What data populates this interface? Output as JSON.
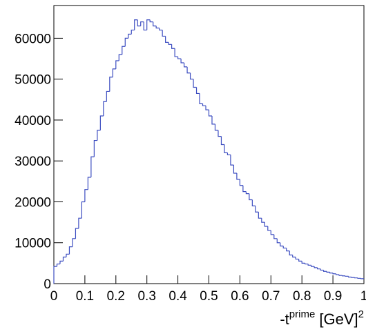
{
  "chart_data": {
    "type": "histogram",
    "x_label": [
      "-t",
      "prime",
      " [GeV]",
      "2"
    ],
    "color": "#3b4cc0",
    "bins": [
      0,
      0.01,
      0.02,
      0.03,
      0.04,
      0.05,
      0.06,
      0.07,
      0.08,
      0.09,
      0.1,
      0.11,
      0.12,
      0.13,
      0.14,
      0.15,
      0.16,
      0.17,
      0.18,
      0.19,
      0.2,
      0.21,
      0.22,
      0.23,
      0.24,
      0.25,
      0.26,
      0.27,
      0.28,
      0.29,
      0.3,
      0.31,
      0.32,
      0.33,
      0.34,
      0.35,
      0.36,
      0.37,
      0.38,
      0.39,
      0.4,
      0.41,
      0.42,
      0.43,
      0.44,
      0.45,
      0.46,
      0.47,
      0.48,
      0.49,
      0.5,
      0.51,
      0.52,
      0.53,
      0.54,
      0.55,
      0.56,
      0.57,
      0.58,
      0.59,
      0.6,
      0.61,
      0.62,
      0.63,
      0.64,
      0.65,
      0.66,
      0.67,
      0.68,
      0.69,
      0.7,
      0.71,
      0.72,
      0.73,
      0.74,
      0.75,
      0.76,
      0.77,
      0.78,
      0.79,
      0.8,
      0.81,
      0.82,
      0.83,
      0.84,
      0.85,
      0.86,
      0.87,
      0.88,
      0.89,
      0.9,
      0.91,
      0.92,
      0.93,
      0.94,
      0.95,
      0.96,
      0.97,
      0.98,
      0.99,
      1
    ],
    "values": [
      4200,
      4800,
      5500,
      6500,
      7200,
      9000,
      11000,
      13500,
      16000,
      20000,
      23000,
      26000,
      31000,
      35000,
      37500,
      41000,
      44500,
      47000,
      50500,
      52500,
      54500,
      56000,
      58000,
      60000,
      61000,
      62000,
      64500,
      63000,
      64000,
      62000,
      64500,
      64000,
      63000,
      62500,
      62000,
      60500,
      59000,
      58500,
      57500,
      55500,
      55000,
      54000,
      53000,
      51500,
      50000,
      48000,
      46500,
      44000,
      43500,
      42500,
      41000,
      39000,
      37500,
      36000,
      34000,
      32000,
      31500,
      29000,
      27000,
      25500,
      24000,
      22500,
      22000,
      20500,
      19000,
      17500,
      16000,
      15000,
      14000,
      13000,
      12000,
      11000,
      10000,
      9200,
      8700,
      8000,
      7000,
      6500,
      6000,
      5500,
      5000,
      4800,
      4500,
      4200,
      3900,
      3600,
      3300,
      3000,
      2800,
      2600,
      2400,
      2200,
      2000,
      1900,
      1800,
      1600,
      1500,
      1400,
      1300,
      1200
    ],
    "xlim": [
      0,
      1
    ],
    "ylim": [
      0,
      68000
    ],
    "xticks": [
      0,
      0.1,
      0.2,
      0.3,
      0.4,
      0.5,
      0.6,
      0.7,
      0.8,
      0.9,
      1
    ],
    "yticks": [
      0,
      10000,
      20000,
      30000,
      40000,
      50000,
      60000
    ]
  }
}
